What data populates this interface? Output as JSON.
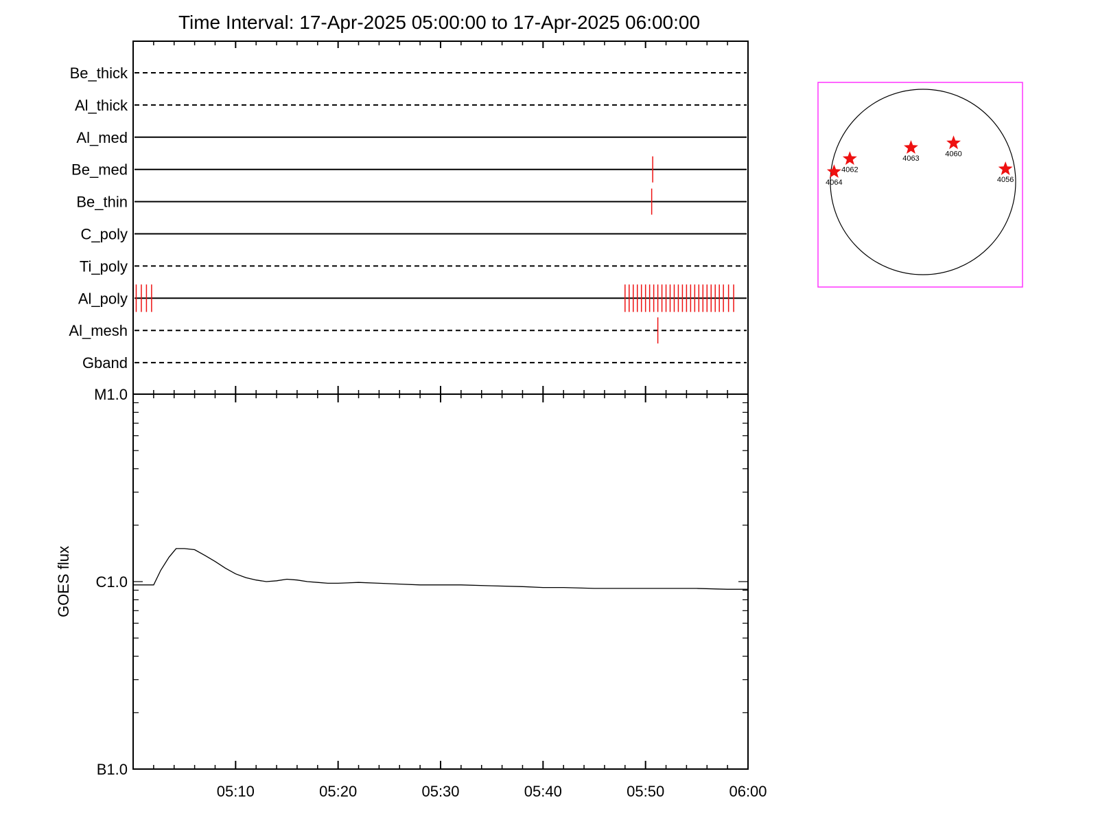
{
  "title": "Time Interval: 17-Apr-2025 05:00:00 to 17-Apr-2025 06:00:00",
  "colors": {
    "axis": "#000000",
    "events": "#ee1111",
    "frame": "#ff33ff",
    "text": "#000000"
  },
  "chart_data": [
    {
      "type": "timeline",
      "time_range_min": [
        0,
        60
      ],
      "x_tick_labels": [
        "05:10",
        "05:20",
        "05:30",
        "05:40",
        "05:50",
        "06:00"
      ],
      "x_tick_values_min": [
        10,
        20,
        30,
        40,
        50,
        60
      ],
      "rows": [
        {
          "label": "Be_thick",
          "style": "dashed",
          "events_min": []
        },
        {
          "label": "Al_thick",
          "style": "dashed",
          "events_min": []
        },
        {
          "label": "Al_med",
          "style": "solid",
          "events_min": []
        },
        {
          "label": "Be_med",
          "style": "solid",
          "events_min": [
            50.7
          ]
        },
        {
          "label": "Be_thin",
          "style": "solid",
          "events_min": [
            50.6
          ]
        },
        {
          "label": "C_poly",
          "style": "solid",
          "events_min": []
        },
        {
          "label": "Ti_poly",
          "style": "dashed",
          "events_min": []
        },
        {
          "label": "Al_poly",
          "style": "solid",
          "events_min": [
            0.3,
            0.8,
            1.3,
            1.8,
            48.0,
            48.4,
            48.8,
            49.2,
            49.6,
            50.0,
            50.4,
            50.8,
            51.2,
            51.6,
            52.0,
            52.4,
            52.8,
            53.2,
            53.6,
            54.0,
            54.4,
            54.8,
            55.2,
            55.6,
            56.0,
            56.4,
            56.8,
            57.2,
            57.6,
            58.1,
            58.6
          ]
        },
        {
          "label": "Al_mesh",
          "style": "dashed",
          "events_min": [
            51.2
          ]
        },
        {
          "label": "Gband",
          "style": "dashed",
          "events_min": []
        }
      ]
    },
    {
      "type": "line",
      "ylabel": "GOES flux",
      "yscale": "log",
      "ylim": [
        1e-07,
        1e-05
      ],
      "y_tick_labels": [
        "B1.0",
        "C1.0",
        "M1.0"
      ],
      "y_tick_values": [
        1e-07,
        1e-06,
        1e-05
      ],
      "series": [
        {
          "x_min": [
            0,
            1,
            2,
            2.7,
            3.5,
            4.2,
            5,
            6,
            7,
            8,
            9,
            10,
            11,
            12,
            13,
            14,
            15,
            16,
            17,
            18,
            19,
            20,
            22,
            24,
            26,
            28,
            30,
            32,
            35,
            38,
            40,
            42,
            45,
            48,
            50,
            52,
            55,
            58,
            60
          ],
          "y": [
            9.6e-07,
            9.6e-07,
            9.6e-07,
            1.15e-06,
            1.35e-06,
            1.5e-06,
            1.5e-06,
            1.48e-06,
            1.38e-06,
            1.28e-06,
            1.18e-06,
            1.1e-06,
            1.05e-06,
            1.02e-06,
            1e-06,
            1.01e-06,
            1.03e-06,
            1.02e-06,
            1e-06,
            9.9e-07,
            9.8e-07,
            9.8e-07,
            9.9e-07,
            9.8e-07,
            9.7e-07,
            9.6e-07,
            9.6e-07,
            9.6e-07,
            9.5e-07,
            9.4e-07,
            9.3e-07,
            9.3e-07,
            9.2e-07,
            9.2e-07,
            9.2e-07,
            9.2e-07,
            9.2e-07,
            9.1e-07,
            9.1e-07
          ]
        }
      ]
    },
    {
      "type": "scatter",
      "description_type": "solar_disk_active_regions",
      "points": [
        {
          "label": "4064",
          "x": -0.96,
          "y": 0.11
        },
        {
          "label": "4062",
          "x": -0.79,
          "y": 0.25
        },
        {
          "label": "4063",
          "x": -0.13,
          "y": 0.37
        },
        {
          "label": "4060",
          "x": 0.33,
          "y": 0.42
        },
        {
          "label": "4056",
          "x": 0.89,
          "y": 0.14
        }
      ]
    }
  ]
}
